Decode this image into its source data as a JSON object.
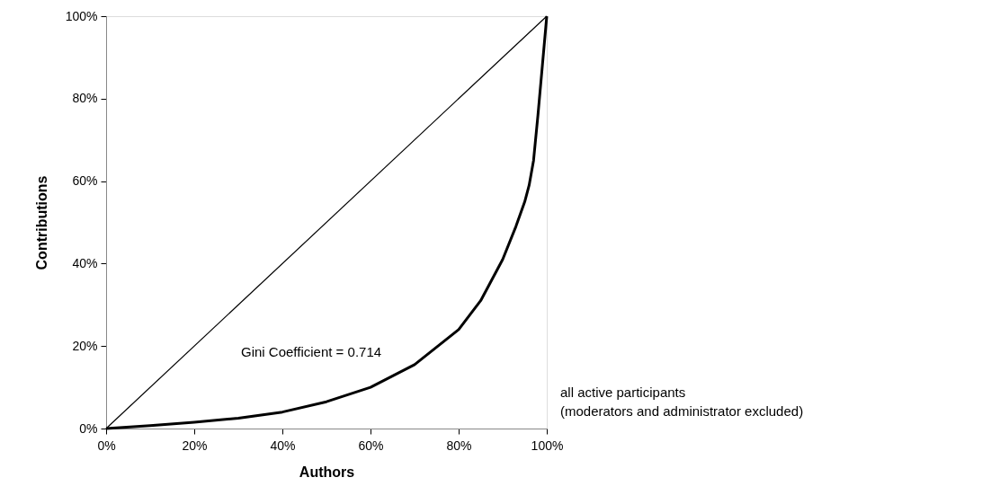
{
  "chart_data": {
    "type": "line",
    "xlabel": "Authors",
    "ylabel": "Contributions",
    "xlim": [
      0,
      100
    ],
    "ylim": [
      0,
      100
    ],
    "xticks": [
      {
        "value": 0,
        "label": "0%"
      },
      {
        "value": 20,
        "label": "20%"
      },
      {
        "value": 40,
        "label": "40%"
      },
      {
        "value": 60,
        "label": "60%"
      },
      {
        "value": 80,
        "label": "80%"
      },
      {
        "value": 100,
        "label": "100%"
      }
    ],
    "yticks": [
      {
        "value": 0,
        "label": "0%"
      },
      {
        "value": 20,
        "label": "20%"
      },
      {
        "value": 40,
        "label": "40%"
      },
      {
        "value": 60,
        "label": "60%"
      },
      {
        "value": 80,
        "label": "80%"
      },
      {
        "value": 100,
        "label": "100%"
      }
    ],
    "series": [
      {
        "color": "#000000",
        "x": [
          0,
          100
        ],
        "values": [
          0,
          100
        ]
      },
      {
        "color": "#000000",
        "x": [
          0,
          10,
          20,
          30,
          40,
          50,
          60,
          70,
          80,
          85,
          90,
          93,
          95,
          96,
          97,
          98,
          99,
          100
        ],
        "values": [
          0,
          0.7,
          1.5,
          2.5,
          4,
          6.5,
          10,
          15.5,
          24,
          31,
          41,
          49,
          55,
          59,
          65,
          76,
          88,
          100
        ]
      }
    ],
    "annotations": [
      "Gini Coefficient = 0.714",
      "all active participants",
      "(moderators and administrator excluded)"
    ]
  }
}
